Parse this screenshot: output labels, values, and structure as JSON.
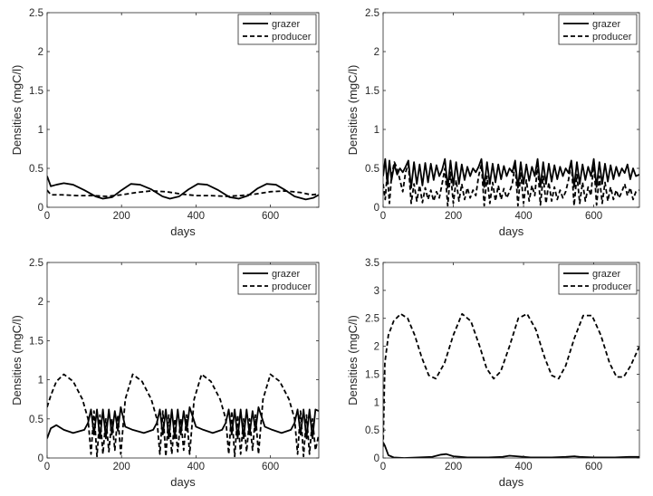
{
  "chart_data": [
    {
      "type": "line",
      "panel": "top-left",
      "xlabel": "days",
      "ylabel": "Densities (mgC/l)",
      "xlim": [
        0,
        730
      ],
      "ylim": [
        0,
        2.5
      ],
      "xticks": [
        "0",
        "200",
        "400",
        "600"
      ],
      "yticks": [
        "0",
        "0.5",
        "1",
        "1.5",
        "2",
        "2.5"
      ],
      "legend_position": "top-right",
      "series": [
        {
          "name": "grazer",
          "style": "solid",
          "x": [
            0,
            10,
            25,
            45,
            70,
            100,
            130,
            150,
            175,
            200,
            225,
            250,
            280,
            310,
            330,
            355,
            380,
            405,
            430,
            460,
            490,
            515,
            540,
            565,
            590,
            615,
            640,
            665,
            695,
            715,
            730
          ],
          "y": [
            0.4,
            0.27,
            0.29,
            0.31,
            0.29,
            0.22,
            0.14,
            0.11,
            0.13,
            0.22,
            0.3,
            0.29,
            0.23,
            0.14,
            0.11,
            0.14,
            0.23,
            0.3,
            0.29,
            0.22,
            0.13,
            0.11,
            0.15,
            0.24,
            0.3,
            0.29,
            0.22,
            0.14,
            0.1,
            0.12,
            0.16
          ]
        },
        {
          "name": "producer",
          "style": "dashed",
          "x": [
            0,
            10,
            40,
            80,
            120,
            160,
            200,
            240,
            280,
            320,
            360,
            400,
            440,
            480,
            520,
            560,
            600,
            640,
            680,
            710,
            730
          ],
          "y": [
            0.22,
            0.16,
            0.16,
            0.15,
            0.15,
            0.14,
            0.16,
            0.19,
            0.21,
            0.2,
            0.17,
            0.15,
            0.15,
            0.14,
            0.15,
            0.17,
            0.2,
            0.21,
            0.19,
            0.16,
            0.17
          ]
        }
      ]
    },
    {
      "type": "line",
      "panel": "top-right",
      "xlabel": "days",
      "ylabel": "Densities (mgC/l)",
      "xlim": [
        0,
        730
      ],
      "ylim": [
        0,
        2.5
      ],
      "xticks": [
        "0",
        "200",
        "400",
        "600"
      ],
      "yticks": [
        "0",
        "0.5",
        "1",
        "1.5",
        "2",
        "2.5"
      ],
      "legend_position": "top-right",
      "series": [
        {
          "name": "grazer",
          "style": "solid",
          "x": [
            0,
            6,
            12,
            18,
            24,
            32,
            40,
            48,
            56,
            64,
            72,
            80,
            88,
            96,
            104,
            112,
            120,
            128,
            136,
            144,
            152,
            160,
            168,
            176,
            184,
            192,
            200,
            208,
            216,
            224,
            232,
            240,
            248,
            256,
            264,
            272,
            280,
            288,
            296,
            304,
            312,
            320,
            328,
            336,
            344,
            352,
            360,
            368,
            376,
            384,
            392,
            400,
            408,
            416,
            424,
            432,
            440,
            448,
            456,
            464,
            472,
            480,
            488,
            496,
            504,
            512,
            520,
            528,
            536,
            544,
            552,
            560,
            568,
            576,
            584,
            592,
            600,
            608,
            616,
            624,
            632,
            640,
            648,
            656,
            664,
            672,
            680,
            688,
            696,
            704,
            712,
            720,
            730
          ],
          "y": [
            0.4,
            0.62,
            0.3,
            0.6,
            0.35,
            0.55,
            0.42,
            0.5,
            0.45,
            0.52,
            0.6,
            0.25,
            0.58,
            0.3,
            0.55,
            0.28,
            0.57,
            0.32,
            0.56,
            0.35,
            0.54,
            0.4,
            0.48,
            0.62,
            0.25,
            0.6,
            0.28,
            0.58,
            0.3,
            0.55,
            0.35,
            0.52,
            0.4,
            0.5,
            0.45,
            0.52,
            0.62,
            0.26,
            0.58,
            0.3,
            0.56,
            0.32,
            0.55,
            0.36,
            0.53,
            0.4,
            0.5,
            0.45,
            0.6,
            0.25,
            0.58,
            0.3,
            0.55,
            0.34,
            0.52,
            0.4,
            0.62,
            0.26,
            0.58,
            0.3,
            0.56,
            0.33,
            0.54,
            0.36,
            0.52,
            0.4,
            0.5,
            0.44,
            0.6,
            0.26,
            0.58,
            0.3,
            0.55,
            0.35,
            0.52,
            0.4,
            0.62,
            0.26,
            0.58,
            0.3,
            0.56,
            0.33,
            0.54,
            0.36,
            0.52,
            0.4,
            0.5,
            0.44,
            0.55,
            0.36,
            0.5,
            0.4,
            0.42
          ]
        },
        {
          "name": "producer",
          "style": "dashed",
          "x": [
            0,
            6,
            12,
            18,
            24,
            32,
            40,
            48,
            56,
            64,
            72,
            80,
            88,
            96,
            104,
            112,
            120,
            128,
            136,
            144,
            152,
            160,
            168,
            176,
            184,
            192,
            200,
            208,
            216,
            224,
            232,
            240,
            248,
            256,
            264,
            272,
            280,
            288,
            296,
            304,
            312,
            320,
            328,
            336,
            344,
            352,
            360,
            368,
            376,
            384,
            392,
            400,
            408,
            416,
            424,
            432,
            440,
            448,
            456,
            464,
            472,
            480,
            488,
            496,
            504,
            512,
            520,
            528,
            536,
            544,
            552,
            560,
            568,
            576,
            584,
            592,
            600,
            608,
            616,
            624,
            632,
            640,
            648,
            656,
            664,
            672,
            680,
            688,
            696,
            704,
            712,
            720,
            730
          ],
          "y": [
            0.3,
            0.1,
            0.45,
            0.05,
            0.4,
            0.58,
            0.5,
            0.35,
            0.2,
            0.45,
            0.55,
            0.05,
            0.3,
            0.08,
            0.28,
            0.06,
            0.25,
            0.1,
            0.22,
            0.08,
            0.2,
            0.12,
            0.3,
            0.5,
            0.02,
            0.45,
            0.05,
            0.35,
            0.08,
            0.3,
            0.1,
            0.25,
            0.12,
            0.22,
            0.15,
            0.4,
            0.55,
            0.02,
            0.4,
            0.05,
            0.32,
            0.08,
            0.28,
            0.1,
            0.24,
            0.12,
            0.2,
            0.3,
            0.55,
            0.02,
            0.45,
            0.05,
            0.35,
            0.08,
            0.28,
            0.15,
            0.55,
            0.03,
            0.4,
            0.05,
            0.32,
            0.08,
            0.26,
            0.1,
            0.22,
            0.12,
            0.2,
            0.35,
            0.58,
            0.02,
            0.42,
            0.05,
            0.32,
            0.08,
            0.26,
            0.15,
            0.58,
            0.03,
            0.4,
            0.05,
            0.32,
            0.08,
            0.26,
            0.1,
            0.22,
            0.12,
            0.2,
            0.3,
            0.15,
            0.25,
            0.1,
            0.2,
            0.22
          ]
        }
      ]
    },
    {
      "type": "line",
      "panel": "bottom-left",
      "xlabel": "days",
      "ylabel": "Densities (mgC/l)",
      "xlim": [
        0,
        730
      ],
      "ylim": [
        0,
        2.5
      ],
      "xticks": [
        "0",
        "200",
        "400",
        "600"
      ],
      "yticks": [
        "0",
        "0.5",
        "1",
        "1.5",
        "2",
        "2.5"
      ],
      "legend_position": "top-right",
      "series": [
        {
          "name": "grazer",
          "style": "solid",
          "x": [
            0,
            10,
            25,
            45,
            70,
            100,
            110,
            118,
            126,
            134,
            142,
            150,
            158,
            166,
            174,
            182,
            190,
            198,
            210,
            230,
            260,
            285,
            295,
            303,
            311,
            319,
            327,
            335,
            343,
            351,
            359,
            367,
            375,
            383,
            400,
            420,
            445,
            470,
            480,
            488,
            496,
            504,
            512,
            520,
            528,
            536,
            544,
            552,
            560,
            568,
            585,
            605,
            630,
            655,
            665,
            673,
            681,
            689,
            697,
            705,
            713,
            721,
            730
          ],
          "y": [
            0.25,
            0.38,
            0.42,
            0.36,
            0.32,
            0.36,
            0.45,
            0.62,
            0.3,
            0.62,
            0.25,
            0.62,
            0.25,
            0.62,
            0.3,
            0.6,
            0.35,
            0.65,
            0.4,
            0.36,
            0.32,
            0.36,
            0.45,
            0.62,
            0.3,
            0.62,
            0.25,
            0.62,
            0.25,
            0.62,
            0.3,
            0.6,
            0.35,
            0.65,
            0.4,
            0.36,
            0.32,
            0.36,
            0.45,
            0.62,
            0.3,
            0.62,
            0.25,
            0.62,
            0.25,
            0.62,
            0.3,
            0.6,
            0.35,
            0.65,
            0.4,
            0.36,
            0.32,
            0.36,
            0.45,
            0.62,
            0.3,
            0.62,
            0.25,
            0.62,
            0.25,
            0.62,
            0.6
          ]
        },
        {
          "name": "producer",
          "style": "dashed",
          "x": [
            0,
            10,
            25,
            45,
            70,
            95,
            110,
            118,
            126,
            134,
            142,
            150,
            158,
            166,
            174,
            182,
            190,
            198,
            210,
            230,
            255,
            280,
            295,
            303,
            311,
            319,
            327,
            335,
            343,
            351,
            359,
            367,
            375,
            383,
            395,
            415,
            440,
            465,
            480,
            488,
            496,
            504,
            512,
            520,
            528,
            536,
            544,
            552,
            560,
            568,
            580,
            600,
            625,
            650,
            665,
            673,
            681,
            689,
            697,
            705,
            713,
            721,
            730
          ],
          "y": [
            0.65,
            0.8,
            0.98,
            1.07,
            0.98,
            0.75,
            0.5,
            0.05,
            0.6,
            0.02,
            0.55,
            0.05,
            0.5,
            0.08,
            0.5,
            0.1,
            0.55,
            0.05,
            0.75,
            1.07,
            0.98,
            0.75,
            0.5,
            0.05,
            0.6,
            0.02,
            0.55,
            0.05,
            0.5,
            0.08,
            0.5,
            0.1,
            0.55,
            0.05,
            0.75,
            1.07,
            0.98,
            0.75,
            0.5,
            0.05,
            0.6,
            0.02,
            0.55,
            0.05,
            0.5,
            0.08,
            0.5,
            0.1,
            0.55,
            0.05,
            0.75,
            1.07,
            0.98,
            0.75,
            0.5,
            0.05,
            0.6,
            0.02,
            0.55,
            0.05,
            0.5,
            0.1,
            0.3
          ]
        }
      ]
    },
    {
      "type": "line",
      "panel": "bottom-right",
      "xlabel": "days",
      "ylabel": "Densities (mgC/l)",
      "xlim": [
        0,
        730
      ],
      "ylim": [
        0,
        3.5
      ],
      "xticks": [
        "0",
        "200",
        "400",
        "600"
      ],
      "yticks": [
        "0",
        "0.5",
        "1",
        "1.5",
        "2",
        "2.5",
        "3",
        "3.5"
      ],
      "legend_position": "top-right",
      "series": [
        {
          "name": "grazer",
          "style": "solid",
          "x": [
            0,
            5,
            15,
            30,
            60,
            100,
            140,
            165,
            180,
            200,
            240,
            300,
            340,
            360,
            380,
            420,
            480,
            520,
            545,
            560,
            600,
            660,
            700,
            730
          ],
          "y": [
            0.28,
            0.22,
            0.05,
            0.01,
            0.0,
            0.01,
            0.02,
            0.06,
            0.07,
            0.03,
            0.01,
            0.01,
            0.02,
            0.04,
            0.03,
            0.01,
            0.01,
            0.02,
            0.03,
            0.02,
            0.01,
            0.01,
            0.02,
            0.02
          ]
        },
        {
          "name": "producer",
          "style": "dashed",
          "x": [
            0,
            5,
            15,
            30,
            50,
            70,
            90,
            110,
            130,
            150,
            175,
            200,
            225,
            250,
            275,
            295,
            315,
            335,
            360,
            385,
            410,
            435,
            460,
            480,
            500,
            520,
            545,
            570,
            595,
            620,
            645,
            665,
            685,
            705,
            730
          ],
          "y": [
            0.2,
            1.7,
            2.2,
            2.45,
            2.58,
            2.5,
            2.2,
            1.8,
            1.48,
            1.42,
            1.7,
            2.2,
            2.58,
            2.45,
            2.0,
            1.6,
            1.42,
            1.55,
            2.0,
            2.5,
            2.58,
            2.3,
            1.8,
            1.48,
            1.42,
            1.65,
            2.15,
            2.55,
            2.55,
            2.2,
            1.7,
            1.45,
            1.45,
            1.65,
            2.0
          ]
        }
      ]
    }
  ]
}
